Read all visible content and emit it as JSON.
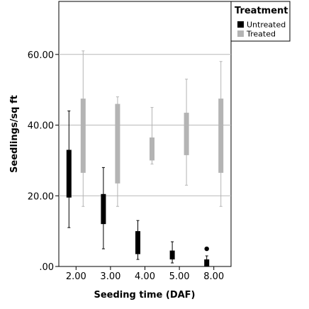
{
  "chart_data": {
    "type": "boxplot",
    "title": "",
    "xlabel": "Seeding time (DAF)",
    "ylabel": "Seedlings/sq ft",
    "ylim": [
      0,
      75
    ],
    "yticks": [
      0,
      20,
      40,
      60
    ],
    "ytick_labels": [
      ".00",
      "20.00",
      "40.00",
      "60.00"
    ],
    "categories": [
      "2.00",
      "3.00",
      "4.00",
      "5.00",
      "8.00"
    ],
    "grid": "horizontal",
    "legend": {
      "title": "Treatment",
      "placement": "top-right"
    },
    "series": [
      {
        "name": "Untreated",
        "color": "#000000",
        "boxes": [
          {
            "min": 11,
            "q1": 19.5,
            "median": 26,
            "q3": 33,
            "max": 44
          },
          {
            "min": 5,
            "q1": 12,
            "median": 16,
            "q3": 20.5,
            "max": 28
          },
          {
            "min": 2,
            "q1": 3.5,
            "median": 6,
            "q3": 10,
            "max": 13
          },
          {
            "min": 1,
            "q1": 2,
            "median": 3,
            "q3": 4.5,
            "max": 7
          },
          {
            "min": 0,
            "q1": 0,
            "median": 1,
            "q3": 2,
            "max": 3,
            "outliers": [
              5
            ]
          }
        ]
      },
      {
        "name": "Treated",
        "color": "#b4b4b4",
        "boxes": [
          {
            "min": 17,
            "q1": 26.5,
            "median": 37,
            "q3": 47.5,
            "max": 61
          },
          {
            "min": 17,
            "q1": 23.5,
            "median": 33,
            "q3": 46,
            "max": 48
          },
          {
            "min": 29,
            "q1": 30,
            "median": 33,
            "q3": 36.5,
            "max": 45
          },
          {
            "min": 23,
            "q1": 31.5,
            "median": 37,
            "q3": 43.5,
            "max": 53
          },
          {
            "min": 17,
            "q1": 26.5,
            "median": 35,
            "q3": 47.5,
            "max": 58
          }
        ]
      }
    ]
  }
}
